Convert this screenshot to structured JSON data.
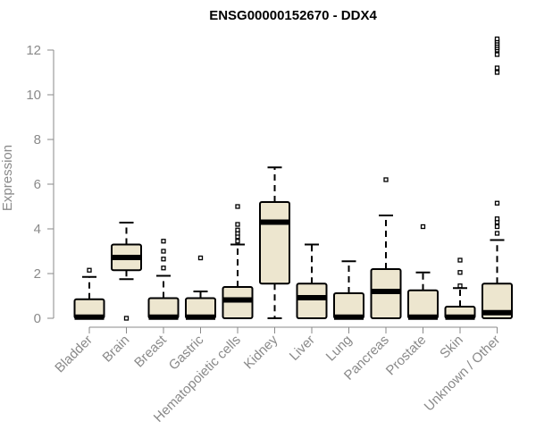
{
  "chart_data": {
    "type": "boxplot",
    "title": "ENSG00000152670 - DDX4",
    "ylabel": "Expression",
    "xlabel": "",
    "ylim": [
      0,
      12.5
    ],
    "yticks": [
      0,
      2,
      4,
      6,
      8,
      10,
      12
    ],
    "grid": false,
    "box_color": "#ede6cf",
    "categories": [
      "Bladder",
      "Brain",
      "Breast",
      "Gastric",
      "Hematopoietic cells",
      "Kidney",
      "Liver",
      "Lung",
      "Pancreas",
      "Prostate",
      "Skin",
      "Unknown / Other"
    ],
    "boxes": [
      {
        "name": "Bladder",
        "q1": 0,
        "median": 0.05,
        "q3": 0.85,
        "whisker_low": 0,
        "whisker_high": 1.85,
        "outliers": [
          2.15
        ]
      },
      {
        "name": "Brain",
        "q1": 2.15,
        "median": 2.72,
        "q3": 3.3,
        "whisker_low": 1.75,
        "whisker_high": 4.28,
        "outliers": [
          0
        ]
      },
      {
        "name": "Breast",
        "q1": 0,
        "median": 0.05,
        "q3": 0.9,
        "whisker_low": 0,
        "whisker_high": 1.9,
        "outliers": [
          2.25,
          2.65,
          3.0,
          3.45
        ]
      },
      {
        "name": "Gastric",
        "q1": 0,
        "median": 0.05,
        "q3": 0.9,
        "whisker_low": 0,
        "whisker_high": 1.2,
        "outliers": [
          2.7
        ]
      },
      {
        "name": "Hematopoietic cells",
        "q1": 0,
        "median": 0.82,
        "q3": 1.4,
        "whisker_low": 0,
        "whisker_high": 3.3,
        "outliers": [
          3.45,
          3.65,
          3.8,
          3.95,
          4.2,
          5.0
        ]
      },
      {
        "name": "Kidney",
        "q1": 1.55,
        "median": 4.3,
        "q3": 5.2,
        "whisker_low": 0,
        "whisker_high": 6.75,
        "outliers": []
      },
      {
        "name": "Liver",
        "q1": 0,
        "median": 0.92,
        "q3": 1.55,
        "whisker_low": 0,
        "whisker_high": 3.3,
        "outliers": []
      },
      {
        "name": "Lung",
        "q1": 0,
        "median": 0.05,
        "q3": 1.12,
        "whisker_low": 0,
        "whisker_high": 2.55,
        "outliers": []
      },
      {
        "name": "Pancreas",
        "q1": 0,
        "median": 1.2,
        "q3": 2.2,
        "whisker_low": 0,
        "whisker_high": 4.6,
        "outliers": [
          6.2
        ]
      },
      {
        "name": "Prostate",
        "q1": 0,
        "median": 0.05,
        "q3": 1.25,
        "whisker_low": 0,
        "whisker_high": 2.05,
        "outliers": [
          4.1
        ]
      },
      {
        "name": "Skin",
        "q1": 0,
        "median": 0.05,
        "q3": 0.52,
        "whisker_low": 0,
        "whisker_high": 1.35,
        "outliers": [
          1.45,
          2.05,
          2.6
        ]
      },
      {
        "name": "Unknown / Other",
        "q1": 0,
        "median": 0.25,
        "q3": 1.55,
        "whisker_low": 0,
        "whisker_high": 3.5,
        "outliers": [
          3.8,
          4.1,
          4.3,
          4.45,
          5.15,
          11.0,
          11.2,
          11.8,
          12.0,
          12.1,
          12.2,
          12.3,
          12.4,
          12.5
        ]
      }
    ]
  }
}
